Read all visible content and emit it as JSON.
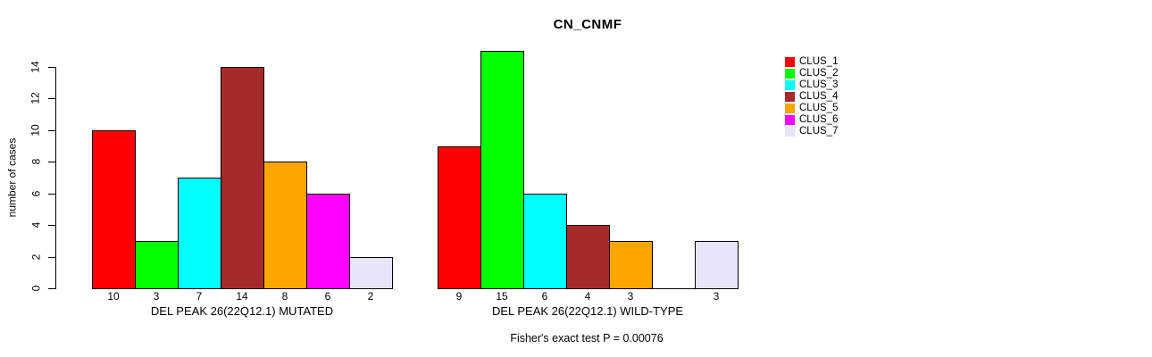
{
  "title": "CN_CNMF",
  "y_axis": {
    "label": "number of cases",
    "tick_labels": [
      "0",
      "2",
      "4",
      "6",
      "8",
      "10",
      "12",
      "14"
    ]
  },
  "legend": {
    "items": [
      {
        "label": "CLUS_1",
        "color": "#FF0000"
      },
      {
        "label": "CLUS_2",
        "color": "#00FF00"
      },
      {
        "label": "CLUS_3",
        "color": "#00FFFF"
      },
      {
        "label": "CLUS_4",
        "color": "#A52A2A"
      },
      {
        "label": "CLUS_5",
        "color": "#FFA500"
      },
      {
        "label": "CLUS_6",
        "color": "#FF00FF"
      },
      {
        "label": "CLUS_7",
        "color": "#E6E6FA"
      }
    ]
  },
  "footer": "Fisher's exact test P = 0.00076",
  "chart_data": [
    {
      "type": "bar",
      "panel": "mutated",
      "xlabel": "DEL PEAK 26(22Q12.1) MUTATED",
      "ylabel": "number of cases",
      "categories": [
        "CLUS_1",
        "CLUS_2",
        "CLUS_3",
        "CLUS_4",
        "CLUS_5",
        "CLUS_6",
        "CLUS_7"
      ],
      "values": [
        10,
        3,
        7,
        14,
        8,
        6,
        2
      ],
      "bar_labels": [
        "10",
        "3",
        "7",
        "14",
        "8",
        "6",
        "2"
      ],
      "colors": [
        "#FF0000",
        "#00FF00",
        "#00FFFF",
        "#A52A2A",
        "#FFA500",
        "#FF00FF",
        "#E6E6FA"
      ],
      "ylim": [
        0,
        15
      ],
      "yticks": [
        0,
        2,
        4,
        6,
        8,
        10,
        12,
        14
      ],
      "grid": false,
      "legend_position": "right"
    },
    {
      "type": "bar",
      "panel": "wild-type",
      "xlabel": "DEL PEAK 26(22Q12.1) WILD-TYPE",
      "ylabel": "number of cases",
      "categories": [
        "CLUS_1",
        "CLUS_2",
        "CLUS_3",
        "CLUS_4",
        "CLUS_5",
        "CLUS_6",
        "CLUS_7"
      ],
      "values": [
        9,
        15,
        6,
        4,
        3,
        0,
        3
      ],
      "bar_labels": [
        "9",
        "15",
        "6",
        "4",
        "3",
        "",
        "3"
      ],
      "colors": [
        "#FF0000",
        "#00FF00",
        "#00FFFF",
        "#A52A2A",
        "#FFA500",
        "#FF00FF",
        "#E6E6FA"
      ],
      "ylim": [
        0,
        15
      ],
      "yticks": [
        0,
        2,
        4,
        6,
        8,
        10,
        12,
        14
      ],
      "grid": false,
      "legend_position": "none"
    }
  ]
}
